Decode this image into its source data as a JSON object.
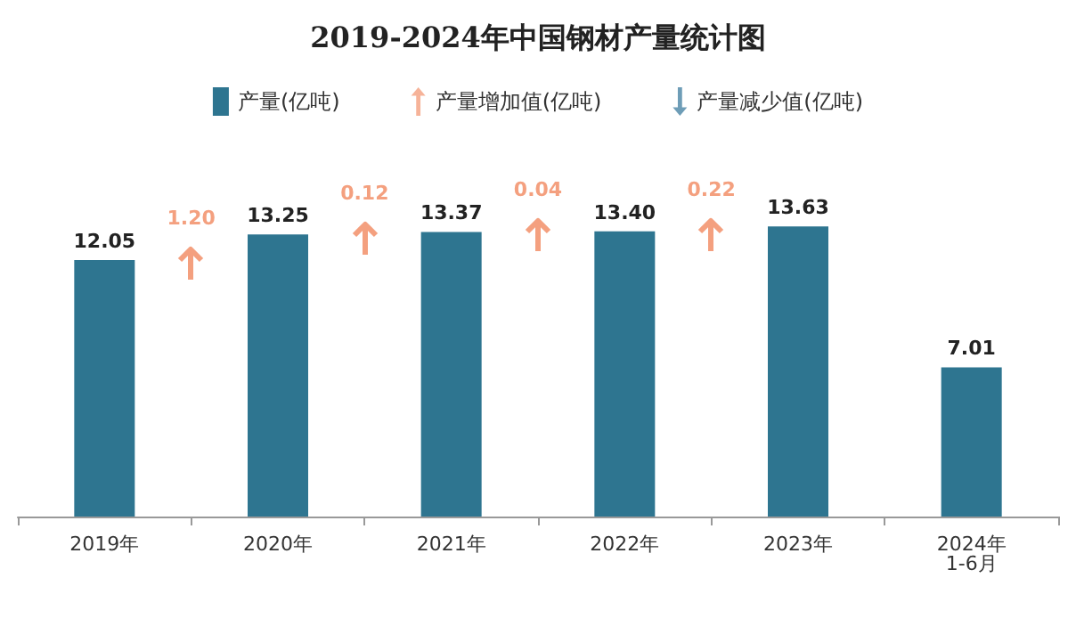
{
  "chart_data": {
    "type": "bar",
    "title": "2019-2024年中国钢材产量统计图",
    "categories": [
      "2019年",
      "2020年",
      "2021年",
      "2022年",
      "2023年",
      "2024年\n1-6月"
    ],
    "series": [
      {
        "name": "产量(亿吨)",
        "color": "#2e7590",
        "values": [
          12.05,
          13.25,
          13.37,
          13.4,
          13.63,
          7.01
        ],
        "value_labels": [
          "12.05",
          "13.25",
          "13.37",
          "13.40",
          "13.63",
          "7.01"
        ]
      },
      {
        "name": "产量增加值(亿吨)",
        "type": "scatter",
        "color": "#f4a07f",
        "values": [
          null,
          null,
          null,
          null,
          null,
          null
        ]
      },
      {
        "name": "产量减少值(亿吨)",
        "type": "scatter",
        "color": "#4a85a5",
        "values": [
          null,
          null,
          null,
          null,
          null,
          null
        ]
      }
    ],
    "annotations": [
      "1.20",
      "0.12",
      "0.04",
      "0.22"
    ],
    "legend": "top"
  }
}
